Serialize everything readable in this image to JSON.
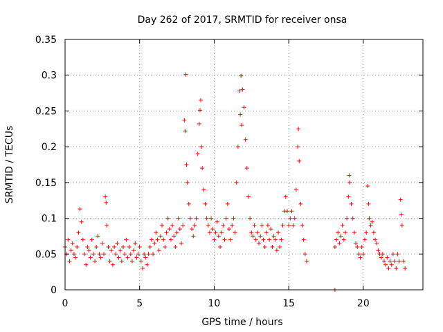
{
  "chart_data": {
    "type": "scatter",
    "title": "Day 262 of 2017, SRMTID for receiver onsa",
    "xlabel": "GPS time / hours",
    "ylabel": "SRMTID / TECUs",
    "xlim": [
      0,
      24
    ],
    "ylim": [
      0,
      0.35
    ],
    "x_ticks": [
      0,
      5,
      10,
      15,
      20
    ],
    "y_ticks": [
      0,
      0.05,
      0.1,
      0.15,
      0.2,
      0.25,
      0.3,
      0.35
    ],
    "x_tick_labels": [
      "0",
      "5",
      "10",
      "15",
      "20"
    ],
    "y_tick_labels": [
      "0",
      "0.05",
      "0.1",
      "0.15",
      "0.2",
      "0.25",
      "0.3",
      "0.35"
    ],
    "grid": true,
    "marker": "+",
    "color": "#ff0000",
    "series": [
      {
        "name": "onsa",
        "points": [
          [
            0.0,
            0.06
          ],
          [
            0.1,
            0.05
          ],
          [
            0.2,
            0.07
          ],
          [
            0.3,
            0.04
          ],
          [
            0.4,
            0.055
          ],
          [
            0.5,
            0.065
          ],
          [
            0.6,
            0.05
          ],
          [
            0.7,
            0.045
          ],
          [
            0.8,
            0.06
          ],
          [
            0.9,
            0.08
          ],
          [
            1.0,
            0.113
          ],
          [
            1.1,
            0.095
          ],
          [
            1.2,
            0.07
          ],
          [
            1.3,
            0.05
          ],
          [
            1.4,
            0.035
          ],
          [
            1.5,
            0.06
          ],
          [
            1.6,
            0.055
          ],
          [
            1.7,
            0.045
          ],
          [
            1.8,
            0.07
          ],
          [
            1.9,
            0.05
          ],
          [
            2.0,
            0.04
          ],
          [
            2.1,
            0.06
          ],
          [
            2.2,
            0.075
          ],
          [
            2.3,
            0.05
          ],
          [
            2.4,
            0.045
          ],
          [
            2.5,
            0.065
          ],
          [
            2.6,
            0.05
          ],
          [
            2.7,
            0.13
          ],
          [
            2.75,
            0.122
          ],
          [
            2.8,
            0.09
          ],
          [
            2.9,
            0.06
          ],
          [
            3.0,
            0.04
          ],
          [
            3.1,
            0.055
          ],
          [
            3.2,
            0.035
          ],
          [
            3.3,
            0.06
          ],
          [
            3.4,
            0.05
          ],
          [
            3.5,
            0.065
          ],
          [
            3.6,
            0.045
          ],
          [
            3.7,
            0.055
          ],
          [
            3.8,
            0.04
          ],
          [
            3.9,
            0.06
          ],
          [
            4.0,
            0.05
          ],
          [
            4.1,
            0.07
          ],
          [
            4.2,
            0.045
          ],
          [
            4.3,
            0.06
          ],
          [
            4.4,
            0.05
          ],
          [
            4.5,
            0.04
          ],
          [
            4.6,
            0.055
          ],
          [
            4.7,
            0.065
          ],
          [
            4.8,
            0.045
          ],
          [
            4.9,
            0.05
          ],
          [
            5.0,
            0.06
          ],
          [
            5.1,
            0.04
          ],
          [
            5.2,
            0.03
          ],
          [
            5.3,
            0.05
          ],
          [
            5.4,
            0.045
          ],
          [
            5.5,
            0.035
          ],
          [
            5.6,
            0.05
          ],
          [
            5.7,
            0.06
          ],
          [
            5.8,
            0.07
          ],
          [
            5.9,
            0.05
          ],
          [
            6.0,
            0.065
          ],
          [
            6.1,
            0.08
          ],
          [
            6.2,
            0.07
          ],
          [
            6.3,
            0.055
          ],
          [
            6.4,
            0.075
          ],
          [
            6.5,
            0.09
          ],
          [
            6.6,
            0.07
          ],
          [
            6.7,
            0.06
          ],
          [
            6.8,
            0.08
          ],
          [
            6.9,
            0.1
          ],
          [
            7.0,
            0.085
          ],
          [
            7.1,
            0.07
          ],
          [
            7.2,
            0.09
          ],
          [
            7.3,
            0.075
          ],
          [
            7.4,
            0.06
          ],
          [
            7.5,
            0.08
          ],
          [
            7.6,
            0.1
          ],
          [
            7.7,
            0.085
          ],
          [
            7.8,
            0.065
          ],
          [
            7.9,
            0.09
          ],
          [
            8.0,
            0.237
          ],
          [
            8.05,
            0.222
          ],
          [
            8.1,
            0.301
          ],
          [
            8.15,
            0.175
          ],
          [
            8.2,
            0.15
          ],
          [
            8.3,
            0.12
          ],
          [
            8.4,
            0.1
          ],
          [
            8.5,
            0.085
          ],
          [
            8.6,
            0.075
          ],
          [
            8.7,
            0.09
          ],
          [
            8.8,
            0.1
          ],
          [
            8.9,
            0.19
          ],
          [
            9.0,
            0.232
          ],
          [
            9.05,
            0.251
          ],
          [
            9.1,
            0.265
          ],
          [
            9.15,
            0.2
          ],
          [
            9.2,
            0.17
          ],
          [
            9.3,
            0.14
          ],
          [
            9.4,
            0.12
          ],
          [
            9.5,
            0.1
          ],
          [
            9.6,
            0.09
          ],
          [
            9.7,
            0.08
          ],
          [
            9.8,
            0.1
          ],
          [
            9.9,
            0.085
          ],
          [
            10.0,
            0.07
          ],
          [
            10.1,
            0.08
          ],
          [
            10.2,
            0.095
          ],
          [
            10.3,
            0.075
          ],
          [
            10.4,
            0.06
          ],
          [
            10.5,
            0.08
          ],
          [
            10.6,
            0.09
          ],
          [
            10.7,
            0.07
          ],
          [
            10.8,
            0.1
          ],
          [
            10.9,
            0.12
          ],
          [
            11.0,
            0.085
          ],
          [
            11.1,
            0.07
          ],
          [
            11.2,
            0.09
          ],
          [
            11.3,
            0.1
          ],
          [
            11.4,
            0.08
          ],
          [
            11.5,
            0.15
          ],
          [
            11.6,
            0.2
          ],
          [
            11.7,
            0.278
          ],
          [
            11.75,
            0.245
          ],
          [
            11.8,
            0.299
          ],
          [
            11.85,
            0.23
          ],
          [
            11.9,
            0.28
          ],
          [
            12.0,
            0.255
          ],
          [
            12.1,
            0.21
          ],
          [
            12.2,
            0.17
          ],
          [
            12.3,
            0.13
          ],
          [
            12.4,
            0.1
          ],
          [
            12.5,
            0.08
          ],
          [
            12.6,
            0.075
          ],
          [
            12.7,
            0.09
          ],
          [
            12.8,
            0.07
          ],
          [
            12.9,
            0.08
          ],
          [
            13.0,
            0.065
          ],
          [
            13.1,
            0.075
          ],
          [
            13.2,
            0.09
          ],
          [
            13.3,
            0.07
          ],
          [
            13.4,
            0.06
          ],
          [
            13.5,
            0.08
          ],
          [
            13.6,
            0.09
          ],
          [
            13.7,
            0.07
          ],
          [
            13.8,
            0.085
          ],
          [
            13.9,
            0.06
          ],
          [
            14.0,
            0.075
          ],
          [
            14.1,
            0.07
          ],
          [
            14.2,
            0.055
          ],
          [
            14.3,
            0.08
          ],
          [
            14.4,
            0.06
          ],
          [
            14.5,
            0.07
          ],
          [
            14.6,
            0.09
          ],
          [
            14.7,
            0.11
          ],
          [
            14.8,
            0.13
          ],
          [
            14.9,
            0.11
          ],
          [
            15.0,
            0.09
          ],
          [
            15.1,
            0.1
          ],
          [
            15.2,
            0.11
          ],
          [
            15.3,
            0.09
          ],
          [
            15.4,
            0.1
          ],
          [
            15.5,
            0.14
          ],
          [
            15.6,
            0.2
          ],
          [
            15.65,
            0.225
          ],
          [
            15.7,
            0.18
          ],
          [
            15.8,
            0.12
          ],
          [
            15.9,
            0.09
          ],
          [
            16.0,
            0.07
          ],
          [
            16.1,
            0.05
          ],
          [
            16.2,
            0.04
          ],
          [
            18.1,
            0.0
          ],
          [
            18.1,
            0.06
          ],
          [
            18.2,
            0.07
          ],
          [
            18.3,
            0.08
          ],
          [
            18.4,
            0.065
          ],
          [
            18.5,
            0.075
          ],
          [
            18.6,
            0.09
          ],
          [
            18.7,
            0.07
          ],
          [
            18.8,
            0.08
          ],
          [
            18.9,
            0.1
          ],
          [
            19.0,
            0.13
          ],
          [
            19.05,
            0.16
          ],
          [
            19.1,
            0.15
          ],
          [
            19.2,
            0.12
          ],
          [
            19.3,
            0.1
          ],
          [
            19.4,
            0.08
          ],
          [
            19.5,
            0.065
          ],
          [
            19.6,
            0.06
          ],
          [
            19.7,
            0.05
          ],
          [
            19.8,
            0.045
          ],
          [
            19.9,
            0.06
          ],
          [
            20.0,
            0.05
          ],
          [
            20.1,
            0.07
          ],
          [
            20.2,
            0.08
          ],
          [
            20.3,
            0.145
          ],
          [
            20.35,
            0.12
          ],
          [
            20.4,
            0.1
          ],
          [
            20.5,
            0.09
          ],
          [
            20.6,
            0.095
          ],
          [
            20.7,
            0.08
          ],
          [
            20.8,
            0.07
          ],
          [
            20.9,
            0.065
          ],
          [
            21.0,
            0.055
          ],
          [
            21.1,
            0.05
          ],
          [
            21.2,
            0.045
          ],
          [
            21.3,
            0.05
          ],
          [
            21.4,
            0.04
          ],
          [
            21.5,
            0.035
          ],
          [
            21.6,
            0.045
          ],
          [
            21.7,
            0.03
          ],
          [
            21.8,
            0.04
          ],
          [
            21.9,
            0.035
          ],
          [
            22.0,
            0.05
          ],
          [
            22.1,
            0.04
          ],
          [
            22.2,
            0.03
          ],
          [
            22.3,
            0.05
          ],
          [
            22.4,
            0.04
          ],
          [
            22.5,
            0.126
          ],
          [
            22.55,
            0.105
          ],
          [
            22.6,
            0.09
          ],
          [
            22.7,
            0.04
          ],
          [
            22.8,
            0.03
          ]
        ]
      }
    ]
  }
}
